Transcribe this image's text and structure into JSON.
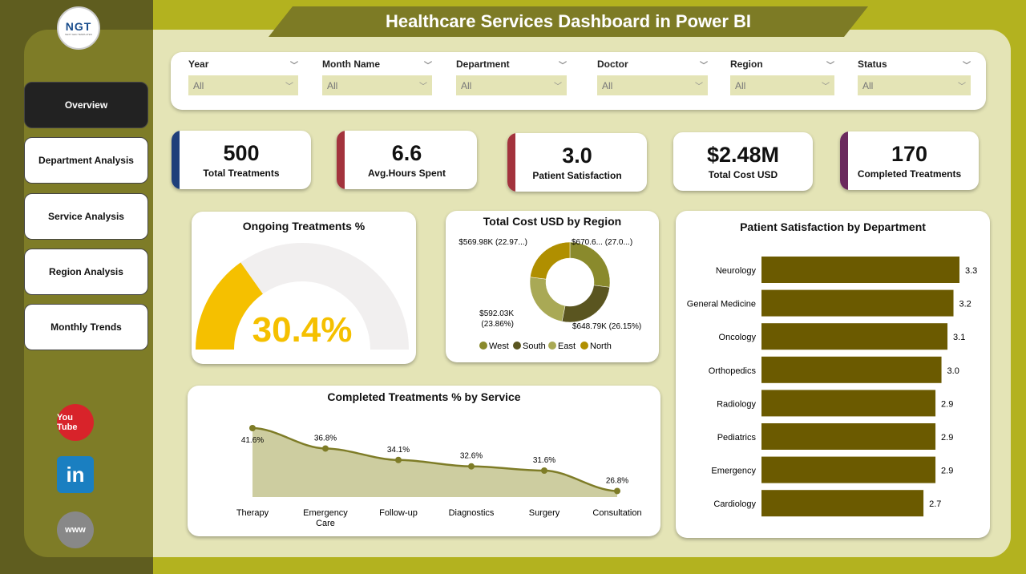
{
  "title": "Healthcare Services Dashboard in Power BI",
  "logo": {
    "text": "NGT",
    "subtitle": "NEXT GEN TEMPLATES"
  },
  "nav": [
    {
      "label": "Overview",
      "active": true
    },
    {
      "label": "Department Analysis"
    },
    {
      "label": "Service Analysis"
    },
    {
      "label": "Region Analysis"
    },
    {
      "label": "Monthly Trends"
    }
  ],
  "social": [
    {
      "name": "youtube",
      "label": "You Tube",
      "color": "#d8232a"
    },
    {
      "name": "linkedin",
      "label": "in",
      "color": "#1a7fc1"
    },
    {
      "name": "website",
      "label": "www",
      "color": "#888888"
    }
  ],
  "filters": [
    {
      "label": "Year",
      "value": "All"
    },
    {
      "label": "Month Name",
      "value": "All"
    },
    {
      "label": "Department",
      "value": "All"
    },
    {
      "label": "Doctor",
      "value": "All"
    },
    {
      "label": "Region",
      "value": "All"
    },
    {
      "label": "Status",
      "value": "All"
    }
  ],
  "kpis": [
    {
      "value": "500",
      "label": "Total Treatments",
      "color": "#1f3f7a"
    },
    {
      "value": "6.6",
      "label": "Avg.Hours Spent",
      "color": "#a3333d"
    },
    {
      "value": "3.0",
      "label": "Patient Satisfaction",
      "color": "#a3333d"
    },
    {
      "value": "$2.48M",
      "label": "Total Cost USD",
      "color": "#ffffff"
    },
    {
      "value": "170",
      "label": "Completed Treatments",
      "color": "#6b2a5e"
    }
  ],
  "gauge": {
    "title": "Ongoing Treatments %",
    "value": 30.4,
    "label": "30.4%",
    "fill": "#f5c000",
    "track": "#f1efef"
  },
  "chart_data": [
    {
      "type": "pie",
      "title": "Total Cost USD by Region",
      "legend": "bottom",
      "categories": [
        "West",
        "South",
        "East",
        "North"
      ],
      "values": [
        670.6,
        648.79,
        592.03,
        569.98
      ],
      "labels": [
        "$670.6... (27.0...)",
        "$648.79K (26.15%)",
        "$592.03K (23.86%)",
        "$569.98K (22.97...)"
      ],
      "colors": [
        "#8a8a2c",
        "#5a5520",
        "#a9a955",
        "#b08f00"
      ]
    },
    {
      "type": "area",
      "title": "Completed Treatments % by Service",
      "categories": [
        "Therapy",
        "Emergency Care",
        "Follow-up",
        "Diagnostics",
        "Surgery",
        "Consultation"
      ],
      "values": [
        41.6,
        36.8,
        34.1,
        32.6,
        31.6,
        26.8
      ],
      "labels": [
        "41.6%",
        "36.8%",
        "34.1%",
        "32.6%",
        "31.6%",
        "26.8%"
      ],
      "color": "#7e7c27",
      "fill": "#cdcda0"
    },
    {
      "type": "bar",
      "orientation": "horizontal",
      "title": "Patient Satisfaction by Department",
      "categories": [
        "Neurology",
        "General Medicine",
        "Oncology",
        "Orthopedics",
        "Radiology",
        "Pediatrics",
        "Emergency",
        "Cardiology"
      ],
      "values": [
        3.3,
        3.2,
        3.1,
        3.0,
        2.9,
        2.9,
        2.9,
        2.7
      ],
      "labels": [
        "3.3",
        "3.2",
        "3.1",
        "3.0",
        "2.9",
        "2.9",
        "2.9",
        "2.7"
      ],
      "color": "#6b5a00"
    }
  ]
}
